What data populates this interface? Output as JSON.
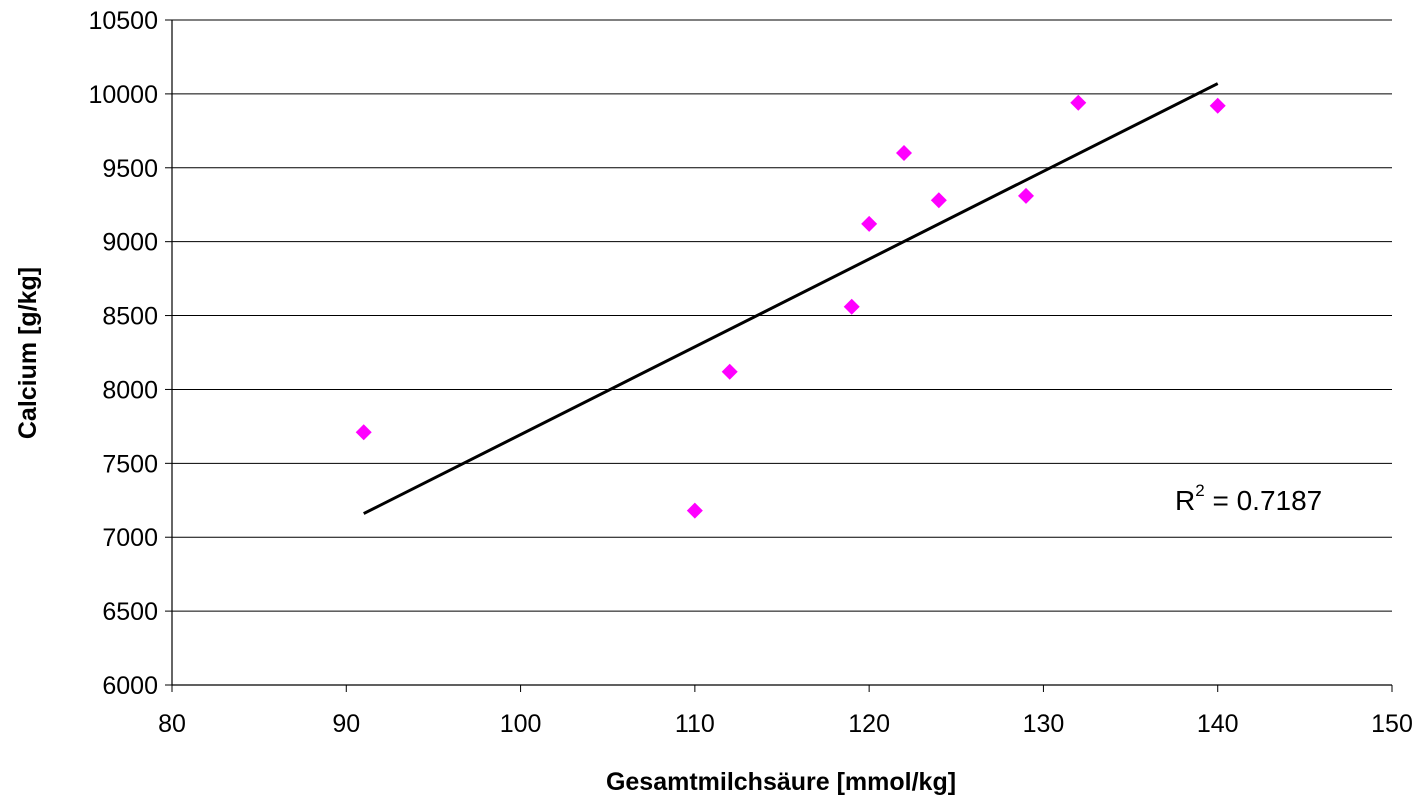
{
  "chart_data": {
    "type": "scatter",
    "xlabel": "Gesamtmilchsäure [mmol/kg]",
    "ylabel": "Calcium [g/kg]",
    "xlim": [
      80,
      150
    ],
    "ylim": [
      6000,
      10500
    ],
    "x_ticks": [
      "80",
      "90",
      "100",
      "110",
      "120",
      "130",
      "140",
      "150"
    ],
    "y_ticks": [
      "6000",
      "6500",
      "7000",
      "7500",
      "8000",
      "8500",
      "9000",
      "9500",
      "10000",
      "10500"
    ],
    "grid": "horizontal",
    "marker": "diamond",
    "marker_color": "#ff00ff",
    "line_color": "#000000",
    "series": [
      {
        "x": [
          91,
          110,
          112,
          119,
          120,
          122,
          124,
          129,
          132,
          140
        ],
        "y": [
          7710,
          7180,
          8120,
          8560,
          9120,
          9600,
          9280,
          9310,
          9940,
          9920
        ]
      }
    ],
    "trendline": {
      "x": [
        91,
        140
      ],
      "y": [
        7160,
        10070
      ]
    },
    "annotation": {
      "r2_label": "R",
      "r2_sup": "2",
      "r2_rest": " = 0.7187"
    }
  }
}
